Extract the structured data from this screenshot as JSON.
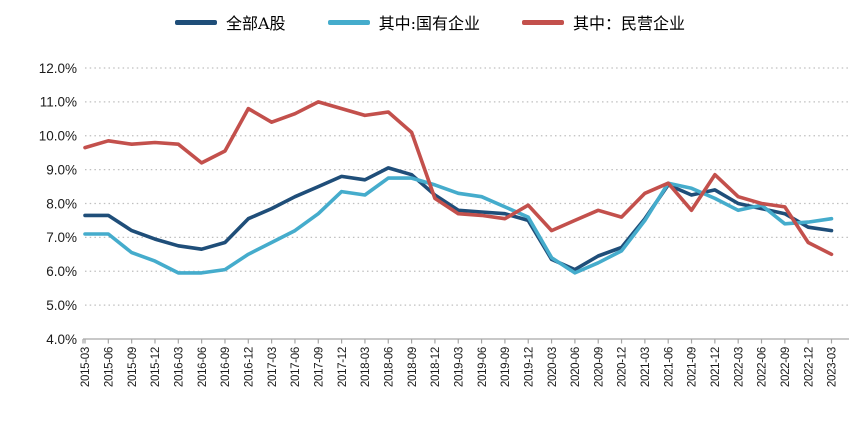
{
  "chart_data": {
    "type": "line",
    "title": "",
    "xlabel": "",
    "ylabel": "",
    "ylim": [
      4,
      12
    ],
    "y_step": 1,
    "y_tick_labels": [
      "12.0%",
      "11.0%",
      "10.0%",
      "9.0%",
      "8.0%",
      "7.0%",
      "6.0%",
      "5.0%",
      "4.0%"
    ],
    "grid": "horizontal-dotted",
    "legend_position": "top",
    "x_labels": [
      "2015-03",
      "2015-06",
      "2015-09",
      "2015-12",
      "2016-03",
      "2016-06",
      "2016-09",
      "2016-12",
      "2017-03",
      "2017-06",
      "2017-09",
      "2017-12",
      "2018-03",
      "2018-06",
      "2018-09",
      "2018-12",
      "2019-03",
      "2019-06",
      "2019-09",
      "2019-12",
      "2020-03",
      "2020-06",
      "2020-09",
      "2020-12",
      "2021-03",
      "2021-06",
      "2021-09",
      "2021-12",
      "2022-03",
      "2022-06",
      "2022-09",
      "2022-12",
      "2023-03"
    ],
    "series": [
      {
        "name": "全部A股",
        "color": "#1F4E79",
        "values": [
          7.65,
          7.65,
          7.2,
          6.95,
          6.75,
          6.65,
          6.85,
          7.55,
          7.85,
          8.2,
          8.5,
          8.8,
          8.7,
          9.05,
          8.85,
          8.25,
          7.8,
          7.75,
          7.7,
          7.5,
          6.35,
          6.05,
          6.45,
          6.7,
          7.55,
          8.55,
          8.25,
          8.4,
          8.0,
          7.85,
          7.7,
          7.3,
          7.2
        ]
      },
      {
        "name": "其中:国有企业",
        "color": "#45ACCC",
        "values": [
          7.1,
          7.1,
          6.55,
          6.3,
          5.95,
          5.95,
          6.05,
          6.5,
          6.85,
          7.2,
          7.7,
          8.35,
          8.25,
          8.75,
          8.75,
          8.55,
          8.3,
          8.2,
          7.9,
          7.6,
          6.4,
          5.95,
          6.25,
          6.6,
          7.5,
          8.6,
          8.45,
          8.15,
          7.8,
          7.95,
          7.4,
          7.45,
          7.55
        ]
      },
      {
        "name": "其中：民营企业",
        "color": "#C3504C",
        "values": [
          9.65,
          9.85,
          9.75,
          9.8,
          9.75,
          9.2,
          9.55,
          10.8,
          10.4,
          10.65,
          11.0,
          10.8,
          10.6,
          10.7,
          10.1,
          8.15,
          7.7,
          7.65,
          7.55,
          7.95,
          7.2,
          7.5,
          7.8,
          7.6,
          8.3,
          8.6,
          7.8,
          8.85,
          8.2,
          8.0,
          7.9,
          6.85,
          6.5
        ]
      }
    ]
  },
  "style_colors": {
    "gridline": "#BFBFBF",
    "axis": "#A6A6A6",
    "tick_text": "#1A1A1A"
  }
}
